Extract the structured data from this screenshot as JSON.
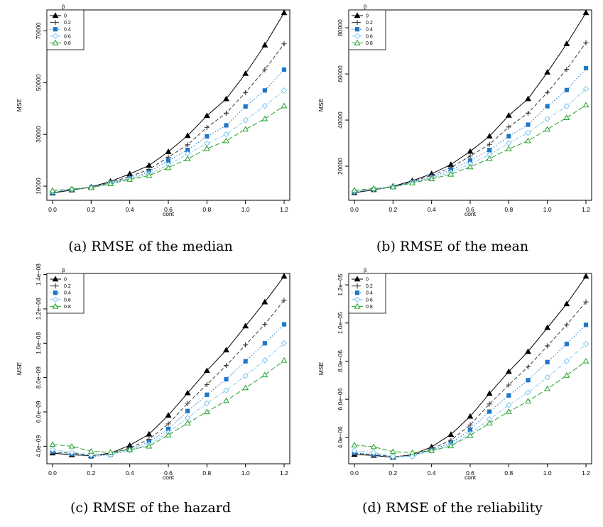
{
  "chart_data": [
    {
      "type": "line",
      "caption": "(a) RMSE of the median",
      "xlabel": "cont",
      "ylabel": "MSE",
      "x": [
        0.0,
        0.1,
        0.2,
        0.3,
        0.4,
        0.5,
        0.6,
        0.7,
        0.8,
        0.9,
        1.0,
        1.1,
        1.2
      ],
      "xticks": [
        "0.0",
        "0.2",
        "0.4",
        "0.6",
        "0.8",
        "1.0",
        "1.2"
      ],
      "xlim": [
        0.0,
        1.2
      ],
      "yticks": [
        "10000",
        "30000",
        "50000",
        "70000"
      ],
      "ytick_values": [
        10000,
        30000,
        50000,
        70000
      ],
      "ylim": [
        7000,
        77000
      ],
      "legend_title": "β",
      "legend_position": "top-left",
      "series": [
        {
          "name": "0",
          "values": [
            7300,
            8500,
            9700,
            11800,
            14700,
            18000,
            23300,
            29500,
            37200,
            43700,
            53500,
            64500,
            77000
          ]
        },
        {
          "name": "0.2",
          "values": [
            7600,
            8500,
            9500,
            11400,
            13700,
            16500,
            21200,
            26000,
            32700,
            38200,
            46200,
            55000,
            65000
          ]
        },
        {
          "name": "0.4",
          "values": [
            7500,
            8700,
            9500,
            11200,
            13100,
            15500,
            19900,
            24000,
            29200,
            33500,
            40800,
            47000,
            55000
          ]
        },
        {
          "name": "0.6",
          "values": [
            7900,
            8800,
            9500,
            11100,
            12800,
            14700,
            18200,
            22500,
            26500,
            30000,
            35500,
            41000,
            47000
          ]
        },
        {
          "name": "0.8",
          "values": [
            8300,
            8900,
            9400,
            10900,
            12600,
            14100,
            17100,
            20500,
            24500,
            27500,
            32000,
            36000,
            41000
          ]
        }
      ]
    },
    {
      "type": "line",
      "caption": "(b) RMSE of the mean",
      "xlabel": "cont",
      "ylabel": "MSE",
      "x": [
        0.0,
        0.1,
        0.2,
        0.3,
        0.4,
        0.5,
        0.6,
        0.7,
        0.8,
        0.9,
        1.0,
        1.1,
        1.2
      ],
      "xticks": [
        "0.0",
        "0.2",
        "0.4",
        "0.6",
        "0.8",
        "1.0",
        "1.2"
      ],
      "xlim": [
        0.0,
        1.2
      ],
      "yticks": [
        "20000",
        "40000",
        "60000",
        "80000"
      ],
      "ytick_values": [
        20000,
        40000,
        60000,
        80000
      ],
      "ylim": [
        8000,
        86500
      ],
      "legend_title": "β",
      "legend_position": "top-left",
      "series": [
        {
          "name": "0",
          "values": [
            8500,
            9800,
            11300,
            13700,
            16700,
            20700,
            26400,
            33000,
            42000,
            49200,
            60700,
            73000,
            86500
          ]
        },
        {
          "name": "0.2",
          "values": [
            8700,
            9800,
            11100,
            13300,
            16000,
            19400,
            24400,
            29500,
            37000,
            43000,
            52000,
            62000,
            73500
          ]
        },
        {
          "name": "0.4",
          "values": [
            8800,
            10000,
            11000,
            13000,
            15300,
            18300,
            22500,
            27000,
            33000,
            38000,
            46000,
            53000,
            62500
          ]
        },
        {
          "name": "0.6",
          "values": [
            9200,
            10100,
            11000,
            12900,
            14900,
            17300,
            21000,
            25000,
            30000,
            34500,
            40500,
            46000,
            53500
          ]
        },
        {
          "name": "0.8",
          "values": [
            9600,
            10300,
            11000,
            12700,
            14500,
            16500,
            19700,
            23300,
            27500,
            31000,
            36000,
            41000,
            46500
          ]
        }
      ]
    },
    {
      "type": "line",
      "caption": "(c) RMSE of the hazard",
      "xlabel": "cont",
      "ylabel": "MSE",
      "x": [
        0.0,
        0.1,
        0.2,
        0.3,
        0.4,
        0.5,
        0.6,
        0.7,
        0.8,
        0.9,
        1.0,
        1.1,
        1.2
      ],
      "xticks": [
        "0.0",
        "0.2",
        "0.4",
        "0.6",
        "0.8",
        "1.0",
        "1.2"
      ],
      "xlim": [
        0.0,
        1.2
      ],
      "yticks": [
        "4.0e−09",
        "6.0e−09",
        "8.0e−09",
        "1.0e−08",
        "1.2e−08",
        "1.4e−08"
      ],
      "ytick_values": [
        4e-09,
        6e-09,
        8e-09,
        1e-08,
        1.2e-08,
        1.4e-08
      ],
      "ylim": [
        3.35e-09,
        1.39e-08
      ],
      "legend_title": "β",
      "legend_position": "top-left",
      "series": [
        {
          "name": "0",
          "values": [
            3.6e-09,
            3.5e-09,
            3.45e-09,
            3.6e-09,
            4.05e-09,
            4.7e-09,
            5.8e-09,
            7.1e-09,
            8.4e-09,
            9.6e-09,
            1.1e-08,
            1.24e-08,
            1.39e-08
          ]
        },
        {
          "name": "0.2",
          "values": [
            3.65e-09,
            3.6e-09,
            3.45e-09,
            3.55e-09,
            3.9e-09,
            4.4e-09,
            5.3e-09,
            6.5e-09,
            7.6e-09,
            8.7e-09,
            9.9e-09,
            1.11e-08,
            1.25e-08
          ]
        },
        {
          "name": "0.4",
          "values": [
            3.7e-09,
            3.55e-09,
            3.4e-09,
            3.5e-09,
            3.8e-09,
            4.25e-09,
            5e-09,
            6.05e-09,
            7e-09,
            7.9e-09,
            8.95e-09,
            1e-08,
            1.11e-08
          ]
        },
        {
          "name": "0.6",
          "values": [
            3.8e-09,
            3.65e-09,
            3.5e-09,
            3.5e-09,
            3.75e-09,
            4.1e-09,
            4.8e-09,
            5.65e-09,
            6.5e-09,
            7.25e-09,
            8.1e-09,
            9e-09,
            1e-08
          ]
        },
        {
          "name": "0.8",
          "values": [
            4.1e-09,
            4e-09,
            3.7e-09,
            3.65e-09,
            3.8e-09,
            4e-09,
            4.65e-09,
            5.35e-09,
            6e-09,
            6.65e-09,
            7.4e-09,
            8.15e-09,
            9e-09
          ]
        }
      ]
    },
    {
      "type": "line",
      "caption": "(d) RMSE of the reliability",
      "xlabel": "cont",
      "ylabel": "MSE",
      "x": [
        0.0,
        0.1,
        0.2,
        0.3,
        0.4,
        0.5,
        0.6,
        0.7,
        0.8,
        0.9,
        1.0,
        1.1,
        1.2
      ],
      "xticks": [
        "0.0",
        "0.2",
        "0.4",
        "0.6",
        "0.8",
        "1.0",
        "1.2"
      ],
      "xlim": [
        0.0,
        1.2
      ],
      "yticks": [
        "4.0e−06",
        "6.0e−06",
        "8.0e−06",
        "1.0e−05",
        "1.2e−05"
      ],
      "ytick_values": [
        4e-06,
        6e-06,
        8e-06,
        1e-05,
        1.2e-05
      ],
      "ylim": [
        2.95e-06,
        1.245e-05
      ],
      "legend_title": "β",
      "legend_position": "top-left",
      "series": [
        {
          "name": "0",
          "values": [
            3.1e-06,
            3.05e-06,
            2.95e-06,
            3.1e-06,
            3.5e-06,
            4.15e-06,
            5.1e-06,
            6.3e-06,
            7.45e-06,
            8.5e-06,
            9.75e-06,
            1.1e-05,
            1.245e-05
          ]
        },
        {
          "name": "0.2",
          "values": [
            3.15e-06,
            3.1e-06,
            3e-06,
            3.05e-06,
            3.4e-06,
            3.85e-06,
            4.65e-06,
            5.75e-06,
            6.75e-06,
            7.7e-06,
            8.8e-06,
            9.9e-06,
            1.11e-05
          ]
        },
        {
          "name": "0.4",
          "values": [
            3.2e-06,
            3.1e-06,
            2.95e-06,
            3.05e-06,
            3.35e-06,
            3.7e-06,
            4.4e-06,
            5.35e-06,
            6.2e-06,
            7e-06,
            7.95e-06,
            8.9e-06,
            9.9e-06
          ]
        },
        {
          "name": "0.6",
          "values": [
            3.3e-06,
            3.2e-06,
            3e-06,
            3e-06,
            3.3e-06,
            3.6e-06,
            4.2e-06,
            4.95e-06,
            5.7e-06,
            6.35e-06,
            7.15e-06,
            8e-06,
            8.9e-06
          ]
        },
        {
          "name": "0.8",
          "values": [
            3.6e-06,
            3.5e-06,
            3.25e-06,
            3.2e-06,
            3.3e-06,
            3.55e-06,
            4.1e-06,
            4.75e-06,
            5.35e-06,
            5.9e-06,
            6.55e-06,
            7.25e-06,
            8e-06
          ]
        }
      ]
    }
  ],
  "series_styles": [
    {
      "color": "#000000",
      "marker": "filled-triangle",
      "dash": ""
    },
    {
      "color": "#3a3a3a",
      "marker": "plus",
      "dash": "5,3"
    },
    {
      "color": "#1f77c8",
      "marker": "filled-square",
      "dash": "1.5,2.5"
    },
    {
      "color": "#7ec8f0",
      "marker": "open-diamond",
      "dash": "5,2,1.5,2"
    },
    {
      "color": "#22a02a",
      "marker": "open-triangle",
      "dash": "7,3"
    }
  ]
}
